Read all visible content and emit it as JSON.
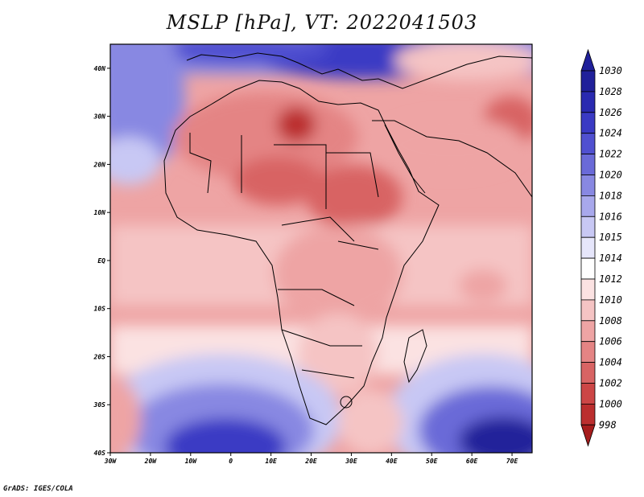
{
  "title": "MSLP [hPa], VT: 2022041503",
  "footer": "GrADS: IGES/COLA",
  "map": {
    "variable": "MSLP",
    "units": "hPa",
    "valid_time": "2022041503",
    "lon_range": [
      -30,
      75
    ],
    "lat_range": [
      -40,
      45
    ],
    "lon_ticks": [
      "30W",
      "20W",
      "10W",
      "0",
      "10E",
      "20E",
      "30E",
      "40E",
      "50E",
      "60E",
      "70E"
    ],
    "lat_ticks": [
      "40N",
      "30N",
      "20N",
      "10N",
      "EQ",
      "10S",
      "20S",
      "30S",
      "40S"
    ]
  },
  "colorbar": {
    "labels": [
      "1030",
      "1028",
      "1026",
      "1024",
      "1022",
      "1020",
      "1018",
      "1016",
      "1015",
      "1014",
      "1012",
      "1010",
      "1008",
      "1006",
      "1004",
      "1002",
      "1000",
      "998"
    ],
    "colors": [
      "#20209a",
      "#2a2ab0",
      "#3a3ac4",
      "#5050d0",
      "#6a6ad8",
      "#8888e2",
      "#a8a8ec",
      "#c8c8f4",
      "#e6e6fb",
      "#ffffff",
      "#fbe2e2",
      "#f5c4c4",
      "#eea4a4",
      "#e48484",
      "#d86464",
      "#cc4646",
      "#bb2e2e",
      "#a61c1c"
    ]
  }
}
